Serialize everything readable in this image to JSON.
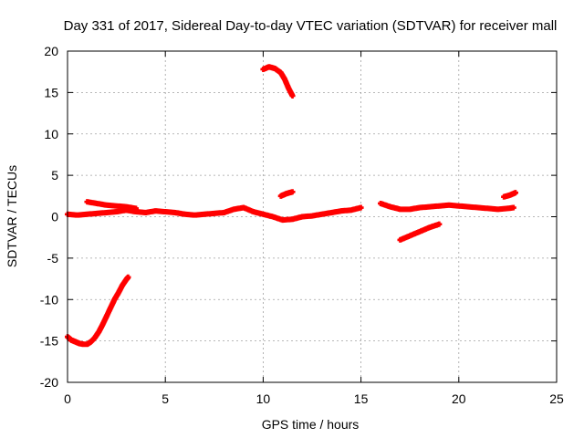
{
  "chart_data": {
    "type": "scatter",
    "title": "Day 331 of 2017, Sidereal Day-to-day VTEC variation (SDTVAR) for receiver mall",
    "xlabel": "GPS time / hours",
    "ylabel": "SDTVAR / TECUs",
    "xlim": [
      0,
      25
    ],
    "ylim": [
      -20,
      20
    ],
    "xticks": [
      0,
      5,
      10,
      15,
      20,
      25
    ],
    "yticks": [
      -20,
      -15,
      -10,
      -5,
      0,
      5,
      10,
      15,
      20
    ],
    "grid": true,
    "marker": "+",
    "color": "#ff0000",
    "series": [
      {
        "name": "arc-1",
        "x": [
          0.0,
          0.2,
          0.4,
          0.6,
          0.8,
          1.0,
          1.2,
          1.4,
          1.6,
          1.8,
          2.0,
          2.2,
          2.4,
          2.6,
          2.8,
          3.0,
          3.1
        ],
        "y": [
          -14.5,
          -14.9,
          -15.1,
          -15.3,
          -15.4,
          -15.4,
          -15.1,
          -14.6,
          -13.9,
          -13.0,
          -12.0,
          -11.0,
          -10.0,
          -9.2,
          -8.3,
          -7.6,
          -7.3
        ]
      },
      {
        "name": "arc-2",
        "x": [
          0.0,
          0.5,
          1.0,
          1.5,
          2.0,
          2.5,
          3.0,
          3.5,
          4.0,
          4.5,
          5.0,
          5.5,
          6.0,
          6.5,
          7.0,
          7.5,
          8.0,
          8.5,
          9.0,
          9.5,
          10.0,
          10.5,
          11.0,
          11.5,
          12.0,
          12.5,
          13.0,
          13.5,
          14.0,
          14.5,
          15.0
        ],
        "y": [
          0.3,
          0.2,
          0.3,
          0.4,
          0.5,
          0.6,
          0.8,
          0.6,
          0.5,
          0.7,
          0.6,
          0.5,
          0.3,
          0.2,
          0.3,
          0.4,
          0.5,
          0.9,
          1.1,
          0.6,
          0.3,
          0.0,
          -0.4,
          -0.3,
          0.0,
          0.1,
          0.3,
          0.5,
          0.7,
          0.8,
          1.1
        ]
      },
      {
        "name": "arc-3",
        "x": [
          1.0,
          1.5,
          2.0,
          2.5,
          3.0,
          3.5
        ],
        "y": [
          1.8,
          1.6,
          1.4,
          1.3,
          1.2,
          1.0
        ]
      },
      {
        "name": "arc-4",
        "x": [
          10.0,
          10.3,
          10.6,
          10.9,
          11.1,
          11.3,
          11.5
        ],
        "y": [
          17.8,
          18.1,
          17.9,
          17.4,
          16.6,
          15.5,
          14.6
        ]
      },
      {
        "name": "arc-5",
        "x": [
          10.9,
          11.2,
          11.5
        ],
        "y": [
          2.5,
          2.8,
          3.0
        ]
      },
      {
        "name": "arc-6",
        "x": [
          16.0,
          16.5,
          17.0,
          17.5,
          18.0,
          18.5,
          19.0,
          19.5,
          20.0,
          20.5,
          21.0,
          21.5,
          22.0,
          22.5,
          22.8
        ],
        "y": [
          1.6,
          1.2,
          0.9,
          0.9,
          1.1,
          1.2,
          1.3,
          1.4,
          1.3,
          1.2,
          1.1,
          1.0,
          0.9,
          1.0,
          1.1
        ]
      },
      {
        "name": "arc-7",
        "x": [
          17.0,
          17.5,
          18.0,
          18.5,
          19.0
        ],
        "y": [
          -2.8,
          -2.3,
          -1.8,
          -1.3,
          -0.9
        ]
      },
      {
        "name": "arc-8",
        "x": [
          22.3,
          22.6,
          22.9
        ],
        "y": [
          2.4,
          2.6,
          2.9
        ]
      }
    ]
  }
}
